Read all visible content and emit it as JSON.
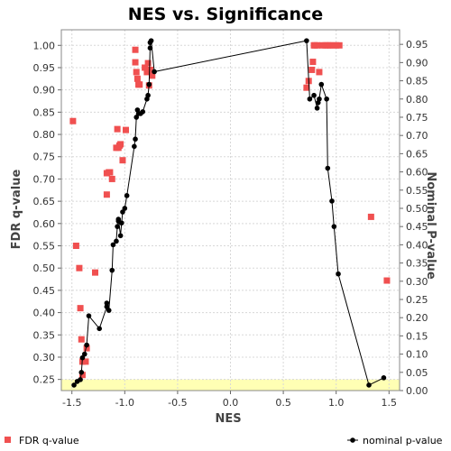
{
  "chart_data": {
    "type": "scatter",
    "title": "NES vs. Significance",
    "xlabel": "NES",
    "ylabel": "FDR q-value",
    "y2label": "Nominal P-value",
    "xlim": [
      -1.6,
      1.6
    ],
    "ylim": [
      0.225,
      1.035
    ],
    "y2lim": [
      0.0,
      0.99
    ],
    "xticks": [
      "-1.5",
      "-1.0",
      "-0.5",
      "0.0",
      "0.5",
      "1.0",
      "1.5"
    ],
    "xtick_values": [
      -1.5,
      -1.0,
      -0.5,
      0.0,
      0.5,
      1.0,
      1.5
    ],
    "yticks": [
      "0.25",
      "0.30",
      "0.35",
      "0.40",
      "0.45",
      "0.50",
      "0.55",
      "0.60",
      "0.65",
      "0.70",
      "0.75",
      "0.80",
      "0.85",
      "0.90",
      "0.95",
      "1.00"
    ],
    "ytick_values": [
      0.25,
      0.3,
      0.35,
      0.4,
      0.45,
      0.5,
      0.55,
      0.6,
      0.65,
      0.7,
      0.75,
      0.8,
      0.85,
      0.9,
      0.95,
      1.0
    ],
    "y2ticks": [
      "0.00",
      "0.05",
      "0.10",
      "0.15",
      "0.20",
      "0.25",
      "0.30",
      "0.35",
      "0.40",
      "0.45",
      "0.50",
      "0.55",
      "0.60",
      "0.65",
      "0.70",
      "0.75",
      "0.80",
      "0.85",
      "0.90",
      "0.95"
    ],
    "y2tick_values": [
      0.0,
      0.05,
      0.1,
      0.15,
      0.2,
      0.25,
      0.3,
      0.35,
      0.4,
      0.45,
      0.5,
      0.55,
      0.6,
      0.65,
      0.7,
      0.75,
      0.8,
      0.85,
      0.9,
      0.95
    ],
    "grid": true,
    "legend_placement": "bottom",
    "highlight_band": {
      "y_from": 0.225,
      "y_to": 0.25,
      "color": "#ffffb4"
    },
    "colors": {
      "fdr": "#f05050",
      "nominal": "#000000"
    },
    "series": [
      {
        "name": "FDR q-value",
        "axis": "left",
        "style": "squares",
        "points": [
          [
            -1.49,
            0.83
          ],
          [
            -1.46,
            0.55
          ],
          [
            -1.43,
            0.5
          ],
          [
            -1.42,
            0.41
          ],
          [
            -1.41,
            0.34
          ],
          [
            -1.4,
            0.29
          ],
          [
            -1.4,
            0.26
          ],
          [
            -1.37,
            0.29
          ],
          [
            -1.36,
            0.32
          ],
          [
            -1.28,
            0.49
          ],
          [
            -1.17,
            0.665
          ],
          [
            -1.17,
            0.713
          ],
          [
            -1.15,
            0.715
          ],
          [
            -1.14,
            0.715
          ],
          [
            -1.12,
            0.7
          ],
          [
            -1.08,
            0.77
          ],
          [
            -1.07,
            0.812
          ],
          [
            -1.06,
            0.77
          ],
          [
            -1.05,
            0.775
          ],
          [
            -1.04,
            0.778
          ],
          [
            -1.02,
            0.742
          ],
          [
            -0.99,
            0.81
          ],
          [
            -0.9,
            0.99
          ],
          [
            -0.9,
            0.962
          ],
          [
            -0.89,
            0.94
          ],
          [
            -0.88,
            0.925
          ],
          [
            -0.87,
            0.912
          ],
          [
            -0.86,
            0.912
          ],
          [
            -0.81,
            0.95
          ],
          [
            -0.79,
            0.94
          ],
          [
            -0.78,
            0.96
          ],
          [
            -0.77,
            0.91
          ],
          [
            -0.76,
            0.945
          ],
          [
            -0.74,
            0.932
          ],
          [
            0.72,
            0.905
          ],
          [
            0.74,
            0.92
          ],
          [
            0.77,
            0.945
          ],
          [
            0.78,
            0.963
          ],
          [
            0.79,
            1.0
          ],
          [
            0.8,
            1.0
          ],
          [
            0.82,
            1.0
          ],
          [
            0.84,
            0.94
          ],
          [
            0.87,
            1.0
          ],
          [
            0.9,
            1.0
          ],
          [
            0.92,
            1.0
          ],
          [
            0.94,
            1.0
          ],
          [
            0.97,
            1.0
          ],
          [
            1.0,
            1.0
          ],
          [
            1.03,
            1.0
          ],
          [
            1.33,
            0.615
          ],
          [
            1.48,
            0.472
          ]
        ]
      },
      {
        "name": "nominal p-value",
        "axis": "right",
        "style": "line-dots",
        "points": [
          [
            -1.48,
            0.015
          ],
          [
            -1.45,
            0.025
          ],
          [
            -1.42,
            0.03
          ],
          [
            -1.41,
            0.05
          ],
          [
            -1.4,
            0.09
          ],
          [
            -1.38,
            0.1
          ],
          [
            -1.36,
            0.125
          ],
          [
            -1.34,
            0.205
          ],
          [
            -1.24,
            0.17
          ],
          [
            -1.17,
            0.23
          ],
          [
            -1.17,
            0.24
          ],
          [
            -1.15,
            0.22
          ],
          [
            -1.12,
            0.33
          ],
          [
            -1.11,
            0.4
          ],
          [
            -1.08,
            0.41
          ],
          [
            -1.07,
            0.45
          ],
          [
            -1.06,
            0.465
          ],
          [
            -1.06,
            0.47
          ],
          [
            -1.04,
            0.425
          ],
          [
            -1.03,
            0.46
          ],
          [
            -1.02,
            0.49
          ],
          [
            -1.0,
            0.5
          ],
          [
            -0.98,
            0.535
          ],
          [
            -0.91,
            0.67
          ],
          [
            -0.9,
            0.69
          ],
          [
            -0.89,
            0.75
          ],
          [
            -0.88,
            0.77
          ],
          [
            -0.87,
            0.76
          ],
          [
            -0.85,
            0.76
          ],
          [
            -0.83,
            0.765
          ],
          [
            -0.79,
            0.8
          ],
          [
            -0.78,
            0.81
          ],
          [
            -0.77,
            0.84
          ],
          [
            -0.76,
            0.94
          ],
          [
            -0.76,
            0.955
          ],
          [
            -0.75,
            0.96
          ],
          [
            -0.72,
            0.875
          ],
          [
            0.72,
            0.96
          ],
          [
            0.75,
            0.8
          ],
          [
            0.79,
            0.81
          ],
          [
            0.82,
            0.775
          ],
          [
            0.83,
            0.79
          ],
          [
            0.84,
            0.8
          ],
          [
            0.86,
            0.84
          ],
          [
            0.91,
            0.8
          ],
          [
            0.92,
            0.61
          ],
          [
            0.96,
            0.52
          ],
          [
            0.98,
            0.45
          ],
          [
            1.02,
            0.32
          ],
          [
            1.31,
            0.015
          ],
          [
            1.45,
            0.035
          ]
        ]
      }
    ]
  }
}
